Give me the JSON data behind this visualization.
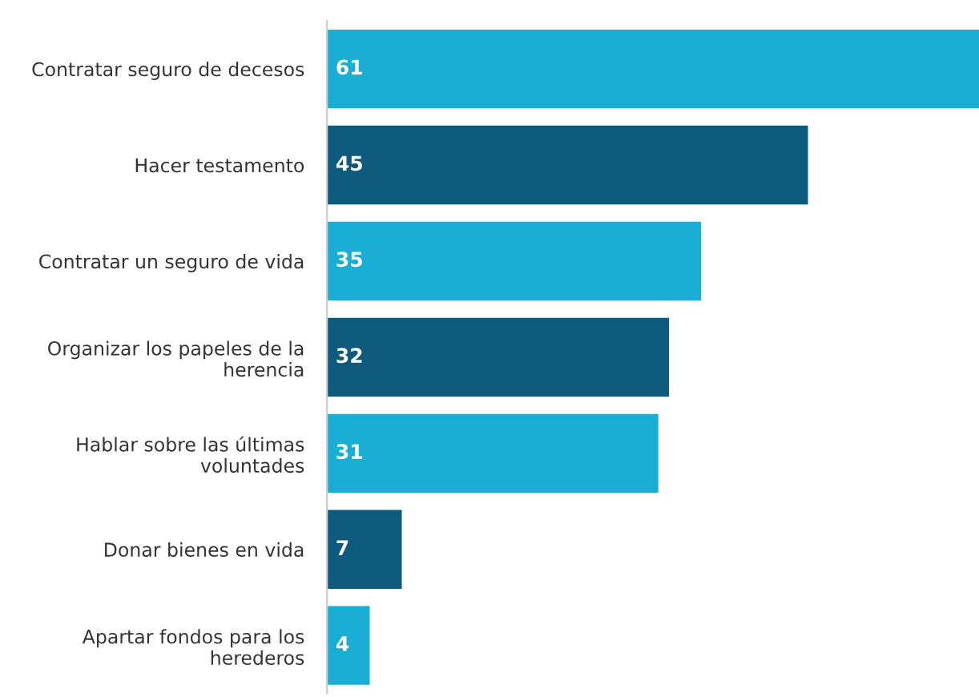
{
  "chart_data": {
    "type": "bar",
    "orientation": "horizontal",
    "categories": [
      "Contratar seguro de decesos",
      "Hacer testamento",
      "Contratar un seguro de vida",
      "Organizar los papeles de la\nherencia",
      "Hablar sobre las últimas\nvoluntades",
      "Donar bienes en vida",
      "Apartar fondos para los\nherederos"
    ],
    "values": [
      61,
      45,
      35,
      32,
      31,
      7,
      4
    ],
    "colors": [
      "#1aaed4",
      "#0d5a7c",
      "#1aaed4",
      "#0d5a7c",
      "#1aaed4",
      "#0d5a7c",
      "#1aaed4"
    ],
    "xlim": [
      0,
      61
    ],
    "data_labels": true,
    "grid": false,
    "legend": false,
    "tick_labels": "y"
  }
}
